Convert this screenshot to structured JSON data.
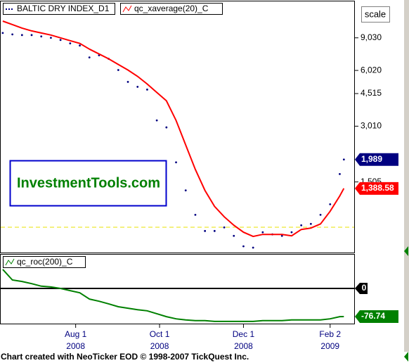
{
  "chart_data": [
    {
      "type": "line",
      "log_scale": true,
      "x": [
        "2008-06-09",
        "2008-06-16",
        "2008-06-23",
        "2008-06-30",
        "2008-07-07",
        "2008-07-14",
        "2008-07-21",
        "2008-07-28",
        "2008-08-04",
        "2008-08-11",
        "2008-08-18",
        "2008-08-25",
        "2008-09-01",
        "2008-09-08",
        "2008-09-15",
        "2008-09-22",
        "2008-09-29",
        "2008-10-06",
        "2008-10-13",
        "2008-10-20",
        "2008-10-27",
        "2008-11-03",
        "2008-11-10",
        "2008-11-17",
        "2008-11-24",
        "2008-12-01",
        "2008-12-08",
        "2008-12-15",
        "2008-12-22",
        "2008-12-29",
        "2009-01-05",
        "2009-01-12",
        "2009-01-19",
        "2009-01-26",
        "2009-02-02",
        "2009-02-09",
        "2009-02-12"
      ],
      "series": [
        {
          "name": "BALTIC DRY INDEX_D1",
          "color": "#000080",
          "style": "dotted",
          "values": [
            9590,
            9420,
            9345,
            9345,
            9185,
            9030,
            8790,
            8425,
            8205,
            7075,
            7265,
            6955,
            6050,
            5220,
            4910,
            4745,
            3235,
            2965,
            1920,
            1355,
            1000,
            818,
            818,
            855,
            770,
            676,
            665,
            805,
            784,
            770,
            805,
            878,
            893,
            1000,
            1140,
            1660,
            1989
          ],
          "value_labels": [
            null,
            null,
            null,
            null,
            null,
            null,
            null,
            null,
            null,
            null,
            null,
            null,
            null,
            null,
            null,
            null,
            null,
            null,
            null,
            null,
            null,
            null,
            null,
            null,
            null,
            null,
            null,
            null,
            null,
            null,
            null,
            null,
            null,
            null,
            null,
            null,
            "1,989"
          ]
        },
        {
          "name": "qc_xaverage(20)_C",
          "color": "#ff0000",
          "style": "solid",
          "values": [
            11120,
            10650,
            10190,
            9845,
            9590,
            9345,
            9030,
            8720,
            8425,
            7850,
            7390,
            6955,
            6485,
            6050,
            5595,
            5085,
            4580,
            4125,
            3235,
            2385,
            1760,
            1355,
            1110,
            975,
            878,
            805,
            764,
            784,
            784,
            784,
            770,
            833,
            848,
            893,
            1045,
            1265,
            1388.58
          ],
          "value_labels": [
            null,
            null,
            null,
            null,
            null,
            null,
            null,
            null,
            null,
            null,
            null,
            null,
            null,
            null,
            null,
            null,
            null,
            null,
            null,
            null,
            null,
            null,
            null,
            null,
            null,
            null,
            null,
            null,
            null,
            null,
            null,
            null,
            null,
            null,
            null,
            null,
            "1,388.58"
          ]
        }
      ],
      "xlim": [
        "2008-06-07",
        "2009-02-20"
      ],
      "ylim": [
        620,
        14200
      ],
      "yticks": [
        {
          "value": 9030,
          "label": "9,030"
        },
        {
          "value": 6020,
          "label": "6,020"
        },
        {
          "value": 4515,
          "label": "4,515"
        },
        {
          "value": 3010,
          "label": "3,010"
        },
        {
          "value": 1505,
          "label": "1,505"
        }
      ]
    },
    {
      "type": "line",
      "x": [
        "2008-06-09",
        "2008-06-16",
        "2008-06-23",
        "2008-06-30",
        "2008-07-07",
        "2008-07-14",
        "2008-07-21",
        "2008-07-28",
        "2008-08-04",
        "2008-08-11",
        "2008-08-18",
        "2008-08-25",
        "2008-09-01",
        "2008-09-08",
        "2008-09-15",
        "2008-09-22",
        "2008-09-29",
        "2008-10-06",
        "2008-10-13",
        "2008-10-20",
        "2008-10-27",
        "2008-11-03",
        "2008-11-10",
        "2008-11-17",
        "2008-11-24",
        "2008-12-01",
        "2008-12-08",
        "2008-12-15",
        "2008-12-22",
        "2008-12-29",
        "2009-01-05",
        "2009-01-12",
        "2009-01-19",
        "2009-01-26",
        "2009-02-02",
        "2009-02-09",
        "2009-02-12"
      ],
      "series": [
        {
          "name": "qc_roc(200)_C",
          "color": "#008000",
          "style": "solid",
          "values": [
            52,
            23,
            19,
            13,
            6,
            4,
            0,
            -6,
            -12,
            -29,
            -35,
            -42,
            -50,
            -54,
            -58,
            -61,
            -69,
            -77,
            -83,
            -86,
            -88,
            -88,
            -90,
            -90,
            -90,
            -90,
            -90,
            -88,
            -88,
            -88,
            -86,
            -86,
            -86,
            -86,
            -83,
            -77,
            -76.74
          ]
        }
      ],
      "xlim": [
        "2008-06-07",
        "2009-02-20"
      ],
      "ylim": [
        -96,
        92
      ],
      "yticks": [
        0
      ],
      "xticks": [
        {
          "value": "2008-08-01",
          "label": "Aug 1",
          "year": "2008"
        },
        {
          "value": "2008-10-01",
          "label": "Oct 1",
          "year": "2008"
        },
        {
          "value": "2008-12-01",
          "label": "Dec 1",
          "year": "2008"
        },
        {
          "value": "2009-02-02",
          "label": "Feb 2",
          "year": "2009"
        }
      ]
    }
  ],
  "button": "scale",
  "watermark": "InvestmentTools.com",
  "footer": "Chart created with NeoTicker EOD © 1998-2007 TickQuest Inc."
}
